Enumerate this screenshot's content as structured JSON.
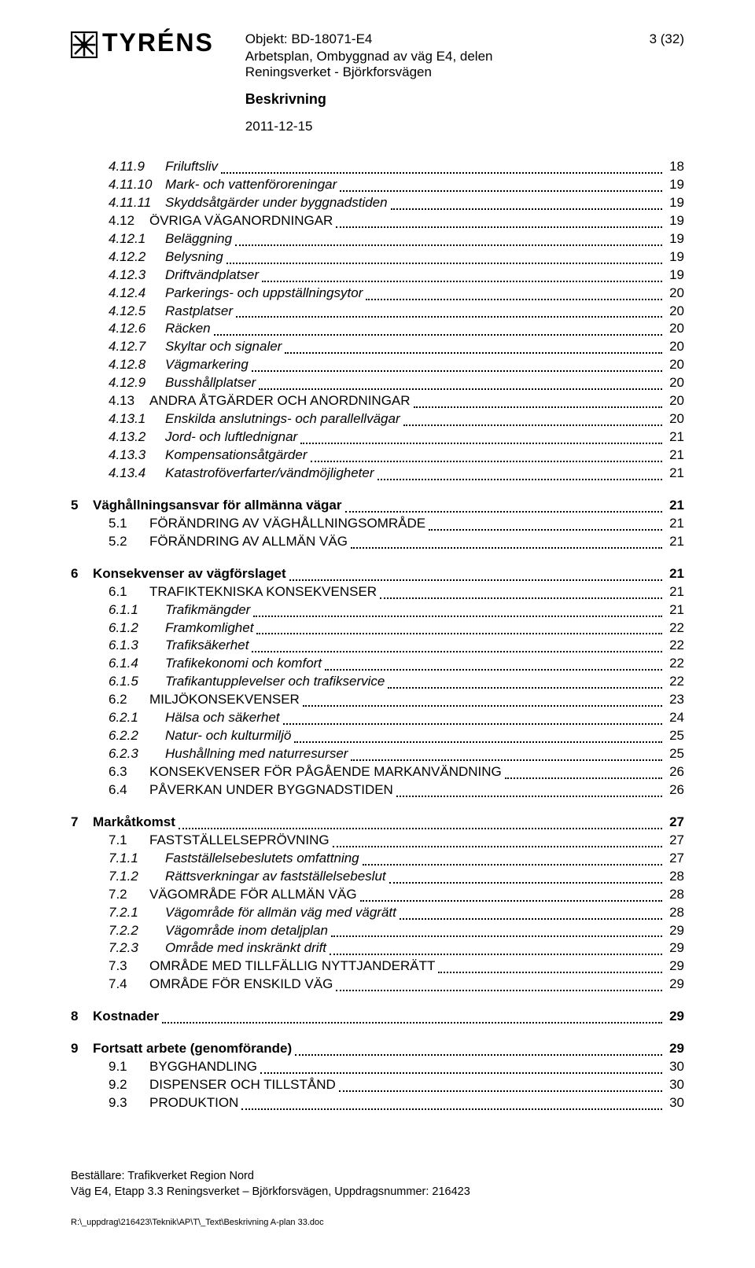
{
  "header": {
    "logo_text": "TYRÉNS",
    "objekt": "Objekt: BD-18071-E4",
    "page_label": "3 (32)",
    "line1": "Arbetsplan, Ombyggnad av väg E4, delen",
    "line2": "Reningsverket - Björkforsvägen",
    "description": "Beskrivning",
    "date": "2011-12-15"
  },
  "toc": [
    {
      "items": [
        {
          "level": 3,
          "num": "4.11.9",
          "label": "Friluftsliv",
          "page": "18",
          "style": "italic"
        },
        {
          "level": 3,
          "num": "4.11.10",
          "label": "Mark- och vattenföroreningar",
          "page": "19",
          "style": "italic"
        },
        {
          "level": 3,
          "num": "4.11.11",
          "label": "Skyddsåtgärder under byggnadstiden",
          "page": "19",
          "style": "italic"
        },
        {
          "level": 2,
          "num": "4.12",
          "label": "ÖVRIGA VÄGANORDNINGAR",
          "page": "19",
          "style": "plain"
        },
        {
          "level": 3,
          "num": "4.12.1",
          "label": "Beläggning",
          "page": "19",
          "style": "italic"
        },
        {
          "level": 3,
          "num": "4.12.2",
          "label": "Belysning",
          "page": "19",
          "style": "italic"
        },
        {
          "level": 3,
          "num": "4.12.3",
          "label": "Driftvändplatser",
          "page": "19",
          "style": "italic"
        },
        {
          "level": 3,
          "num": "4.12.4",
          "label": "Parkerings- och uppställningsytor",
          "page": "20",
          "style": "italic"
        },
        {
          "level": 3,
          "num": "4.12.5",
          "label": "Rastplatser",
          "page": "20",
          "style": "italic"
        },
        {
          "level": 3,
          "num": "4.12.6",
          "label": "Räcken",
          "page": "20",
          "style": "italic"
        },
        {
          "level": 3,
          "num": "4.12.7",
          "label": "Skyltar och signaler",
          "page": "20",
          "style": "italic"
        },
        {
          "level": 3,
          "num": "4.12.8",
          "label": "Vägmarkering",
          "page": "20",
          "style": "italic"
        },
        {
          "level": 3,
          "num": "4.12.9",
          "label": "Busshållplatser",
          "page": "20",
          "style": "italic"
        },
        {
          "level": 2,
          "num": "4.13",
          "label": "ANDRA ÅTGÄRDER OCH ANORDNINGAR",
          "page": "20",
          "style": "plain"
        },
        {
          "level": 3,
          "num": "4.13.1",
          "label": "Enskilda anslutnings- och parallellvägar",
          "page": "20",
          "style": "italic"
        },
        {
          "level": 3,
          "num": "4.13.2",
          "label": "Jord- och luftlednignar",
          "page": "21",
          "style": "italic"
        },
        {
          "level": 3,
          "num": "4.13.3",
          "label": "Kompensationsåtgärder",
          "page": "21",
          "style": "italic"
        },
        {
          "level": 3,
          "num": "4.13.4",
          "label": "Katastroföverfarter/vändmöjligheter",
          "page": "21",
          "style": "italic"
        }
      ]
    },
    {
      "items": [
        {
          "level": 1,
          "num": "5",
          "label": "Väghållningsansvar för allmänna vägar",
          "page": "21",
          "style": "bold"
        },
        {
          "level": 2,
          "num": "5.1",
          "label": "FÖRÄNDRING AV VÄGHÅLLNINGSOMRÅDE",
          "page": "21",
          "style": "plain"
        },
        {
          "level": 2,
          "num": "5.2",
          "label": "FÖRÄNDRING AV ALLMÄN VÄG",
          "page": "21",
          "style": "plain"
        }
      ]
    },
    {
      "items": [
        {
          "level": 1,
          "num": "6",
          "label": "Konsekvenser av vägförslaget",
          "page": "21",
          "style": "bold"
        },
        {
          "level": 2,
          "num": "6.1",
          "label": "TRAFIKTEKNISKA KONSEKVENSER",
          "page": "21",
          "style": "plain"
        },
        {
          "level": 3,
          "num": "6.1.1",
          "label": "Trafikmängder",
          "page": "21",
          "style": "italic"
        },
        {
          "level": 3,
          "num": "6.1.2",
          "label": "Framkomlighet",
          "page": "22",
          "style": "italic"
        },
        {
          "level": 3,
          "num": "6.1.3",
          "label": "Trafiksäkerhet",
          "page": "22",
          "style": "italic"
        },
        {
          "level": 3,
          "num": "6.1.4",
          "label": "Trafikekonomi och komfort",
          "page": "22",
          "style": "italic"
        },
        {
          "level": 3,
          "num": "6.1.5",
          "label": "Trafikantupplevelser och trafikservice",
          "page": "22",
          "style": "italic"
        },
        {
          "level": 2,
          "num": "6.2",
          "label": "MILJÖKONSEKVENSER",
          "page": "23",
          "style": "plain"
        },
        {
          "level": 3,
          "num": "6.2.1",
          "label": "Hälsa och säkerhet",
          "page": "24",
          "style": "italic"
        },
        {
          "level": 3,
          "num": "6.2.2",
          "label": "Natur- och kulturmiljö",
          "page": "25",
          "style": "italic"
        },
        {
          "level": 3,
          "num": "6.2.3",
          "label": "Hushållning med naturresurser",
          "page": "25",
          "style": "italic"
        },
        {
          "level": 2,
          "num": "6.3",
          "label": "KONSEKVENSER FÖR PÅGÅENDE MARKANVÄNDNING",
          "page": "26",
          "style": "plain"
        },
        {
          "level": 2,
          "num": "6.4",
          "label": "PÅVERKAN UNDER BYGGNADSTIDEN",
          "page": "26",
          "style": "plain"
        }
      ]
    },
    {
      "items": [
        {
          "level": 1,
          "num": "7",
          "label": "Markåtkomst",
          "page": "27",
          "style": "bold"
        },
        {
          "level": 2,
          "num": "7.1",
          "label": "FASTSTÄLLELSEPRÖVNING",
          "page": "27",
          "style": "plain"
        },
        {
          "level": 3,
          "num": "7.1.1",
          "label": "Fastställelsebeslutets omfattning",
          "page": "27",
          "style": "italic"
        },
        {
          "level": 3,
          "num": "7.1.2",
          "label": "Rättsverkningar av fastställelsebeslut",
          "page": "28",
          "style": "italic"
        },
        {
          "level": 2,
          "num": "7.2",
          "label": "VÄGOMRÅDE FÖR ALLMÄN VÄG",
          "page": "28",
          "style": "plain"
        },
        {
          "level": 3,
          "num": "7.2.1",
          "label": "Vägområde för allmän väg med vägrätt",
          "page": "28",
          "style": "italic"
        },
        {
          "level": 3,
          "num": "7.2.2",
          "label": "Vägområde inom detaljplan",
          "page": "29",
          "style": "italic"
        },
        {
          "level": 3,
          "num": "7.2.3",
          "label": "Område med inskränkt drift",
          "page": "29",
          "style": "italic"
        },
        {
          "level": 2,
          "num": "7.3",
          "label": "OMRÅDE MED TILLFÄLLIG NYTTJANDERÄTT",
          "page": "29",
          "style": "plain"
        },
        {
          "level": 2,
          "num": "7.4",
          "label": "OMRÅDE FÖR ENSKILD VÄG",
          "page": "29",
          "style": "plain"
        }
      ]
    },
    {
      "items": [
        {
          "level": 1,
          "num": "8",
          "label": "Kostnader",
          "page": "29",
          "style": "bold"
        }
      ]
    },
    {
      "items": [
        {
          "level": 1,
          "num": "9",
          "label": "Fortsatt arbete (genomförande)",
          "page": "29",
          "style": "bold"
        },
        {
          "level": 2,
          "num": "9.1",
          "label": "BYGGHANDLING",
          "page": "30",
          "style": "plain"
        },
        {
          "level": 2,
          "num": "9.2",
          "label": "DISPENSER OCH TILLSTÅND",
          "page": "30",
          "style": "plain"
        },
        {
          "level": 2,
          "num": "9.3",
          "label": "PRODUKTION",
          "page": "30",
          "style": "plain"
        }
      ]
    }
  ],
  "footer": {
    "line1": "Beställare: Trafikverket Region Nord",
    "line2": "Väg E4, Etapp 3.3 Reningsverket – Björkforsvägen, Uppdragsnummer: 216423",
    "path": "R:\\_uppdrag\\216423\\Teknik\\AP\\T\\_Text\\Beskrivning A-plan 33.doc"
  }
}
